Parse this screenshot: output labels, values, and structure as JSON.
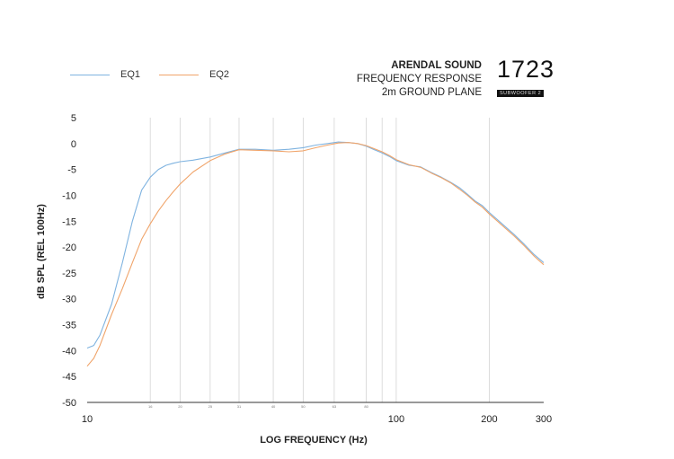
{
  "legend": [
    {
      "name": "EQ1",
      "color": "#7fb3e0"
    },
    {
      "name": "EQ2",
      "color": "#f0a46a"
    }
  ],
  "brand": {
    "company": "ARENDAL SOUND",
    "line1": "FREQUENCY RESPONSE",
    "line2": "2m GROUND PLANE",
    "model_number": "1723",
    "model_tag": "SUBWOOFER 2"
  },
  "chart_data": {
    "type": "line",
    "title": "",
    "xlabel": "LOG FREQUENCY (Hz)",
    "ylabel": "dB SPL (REL 100Hz)",
    "xscale": "log",
    "xlim": [
      10,
      300
    ],
    "ylim": [
      -50,
      5
    ],
    "yticks": [
      5,
      0,
      -5,
      -10,
      -15,
      -20,
      -25,
      -30,
      -35,
      -40,
      -45,
      -50
    ],
    "xticks_major": [
      10,
      100,
      200,
      300
    ],
    "xticks_minor": [
      16,
      20,
      25,
      31,
      40,
      50,
      63,
      80
    ],
    "vertical_gridlines": [
      16,
      20,
      25,
      31,
      40,
      50,
      63,
      80,
      90,
      100,
      200
    ],
    "grid": "vertical only",
    "legend_position": "top-left",
    "series": [
      {
        "name": "EQ1",
        "color": "#7fb3e0",
        "x": [
          10,
          10.5,
          11,
          12,
          13,
          14,
          15,
          16,
          17,
          18,
          19,
          20,
          22,
          25,
          28,
          31,
          35,
          40,
          45,
          50,
          55,
          60,
          65,
          70,
          75,
          80,
          85,
          90,
          95,
          100,
          110,
          120,
          130,
          140,
          150,
          160,
          170,
          180,
          190,
          200,
          220,
          240,
          260,
          280,
          300
        ],
        "y": [
          -39.5,
          -39,
          -37,
          -31,
          -23,
          -15,
          -9,
          -6.5,
          -5,
          -4.2,
          -3.8,
          -3.5,
          -3.2,
          -2.6,
          -1.8,
          -1.1,
          -1.1,
          -1.3,
          -1.1,
          -0.8,
          -0.3,
          0,
          0.3,
          0.2,
          0,
          -0.5,
          -1.2,
          -1.8,
          -2.5,
          -3.3,
          -4.2,
          -4.5,
          -5.6,
          -6.5,
          -7.5,
          -8.5,
          -9.8,
          -11.1,
          -12,
          -13.3,
          -15.5,
          -17.5,
          -19.5,
          -21.5,
          -23
        ]
      },
      {
        "name": "EQ2",
        "color": "#f0a46a",
        "x": [
          10,
          10.5,
          11,
          12,
          13,
          14,
          15,
          16,
          17,
          18,
          19,
          20,
          22,
          25,
          28,
          31,
          35,
          40,
          45,
          50,
          55,
          60,
          65,
          70,
          75,
          80,
          85,
          90,
          95,
          100,
          110,
          120,
          130,
          140,
          150,
          160,
          170,
          180,
          190,
          200,
          220,
          240,
          260,
          280,
          300
        ],
        "y": [
          -43,
          -41.5,
          -39,
          -33,
          -28,
          -23,
          -18.5,
          -15.5,
          -13,
          -11,
          -9.3,
          -7.8,
          -5.5,
          -3.3,
          -2,
          -1.2,
          -1.3,
          -1.4,
          -1.6,
          -1.4,
          -0.8,
          -0.3,
          0.1,
          0.2,
          0,
          -0.4,
          -1,
          -1.6,
          -2.3,
          -3.1,
          -4.1,
          -4.6,
          -5.7,
          -6.6,
          -7.6,
          -8.8,
          -10,
          -11.3,
          -12.3,
          -13.6,
          -15.8,
          -17.8,
          -19.8,
          -21.8,
          -23.4
        ]
      }
    ]
  }
}
